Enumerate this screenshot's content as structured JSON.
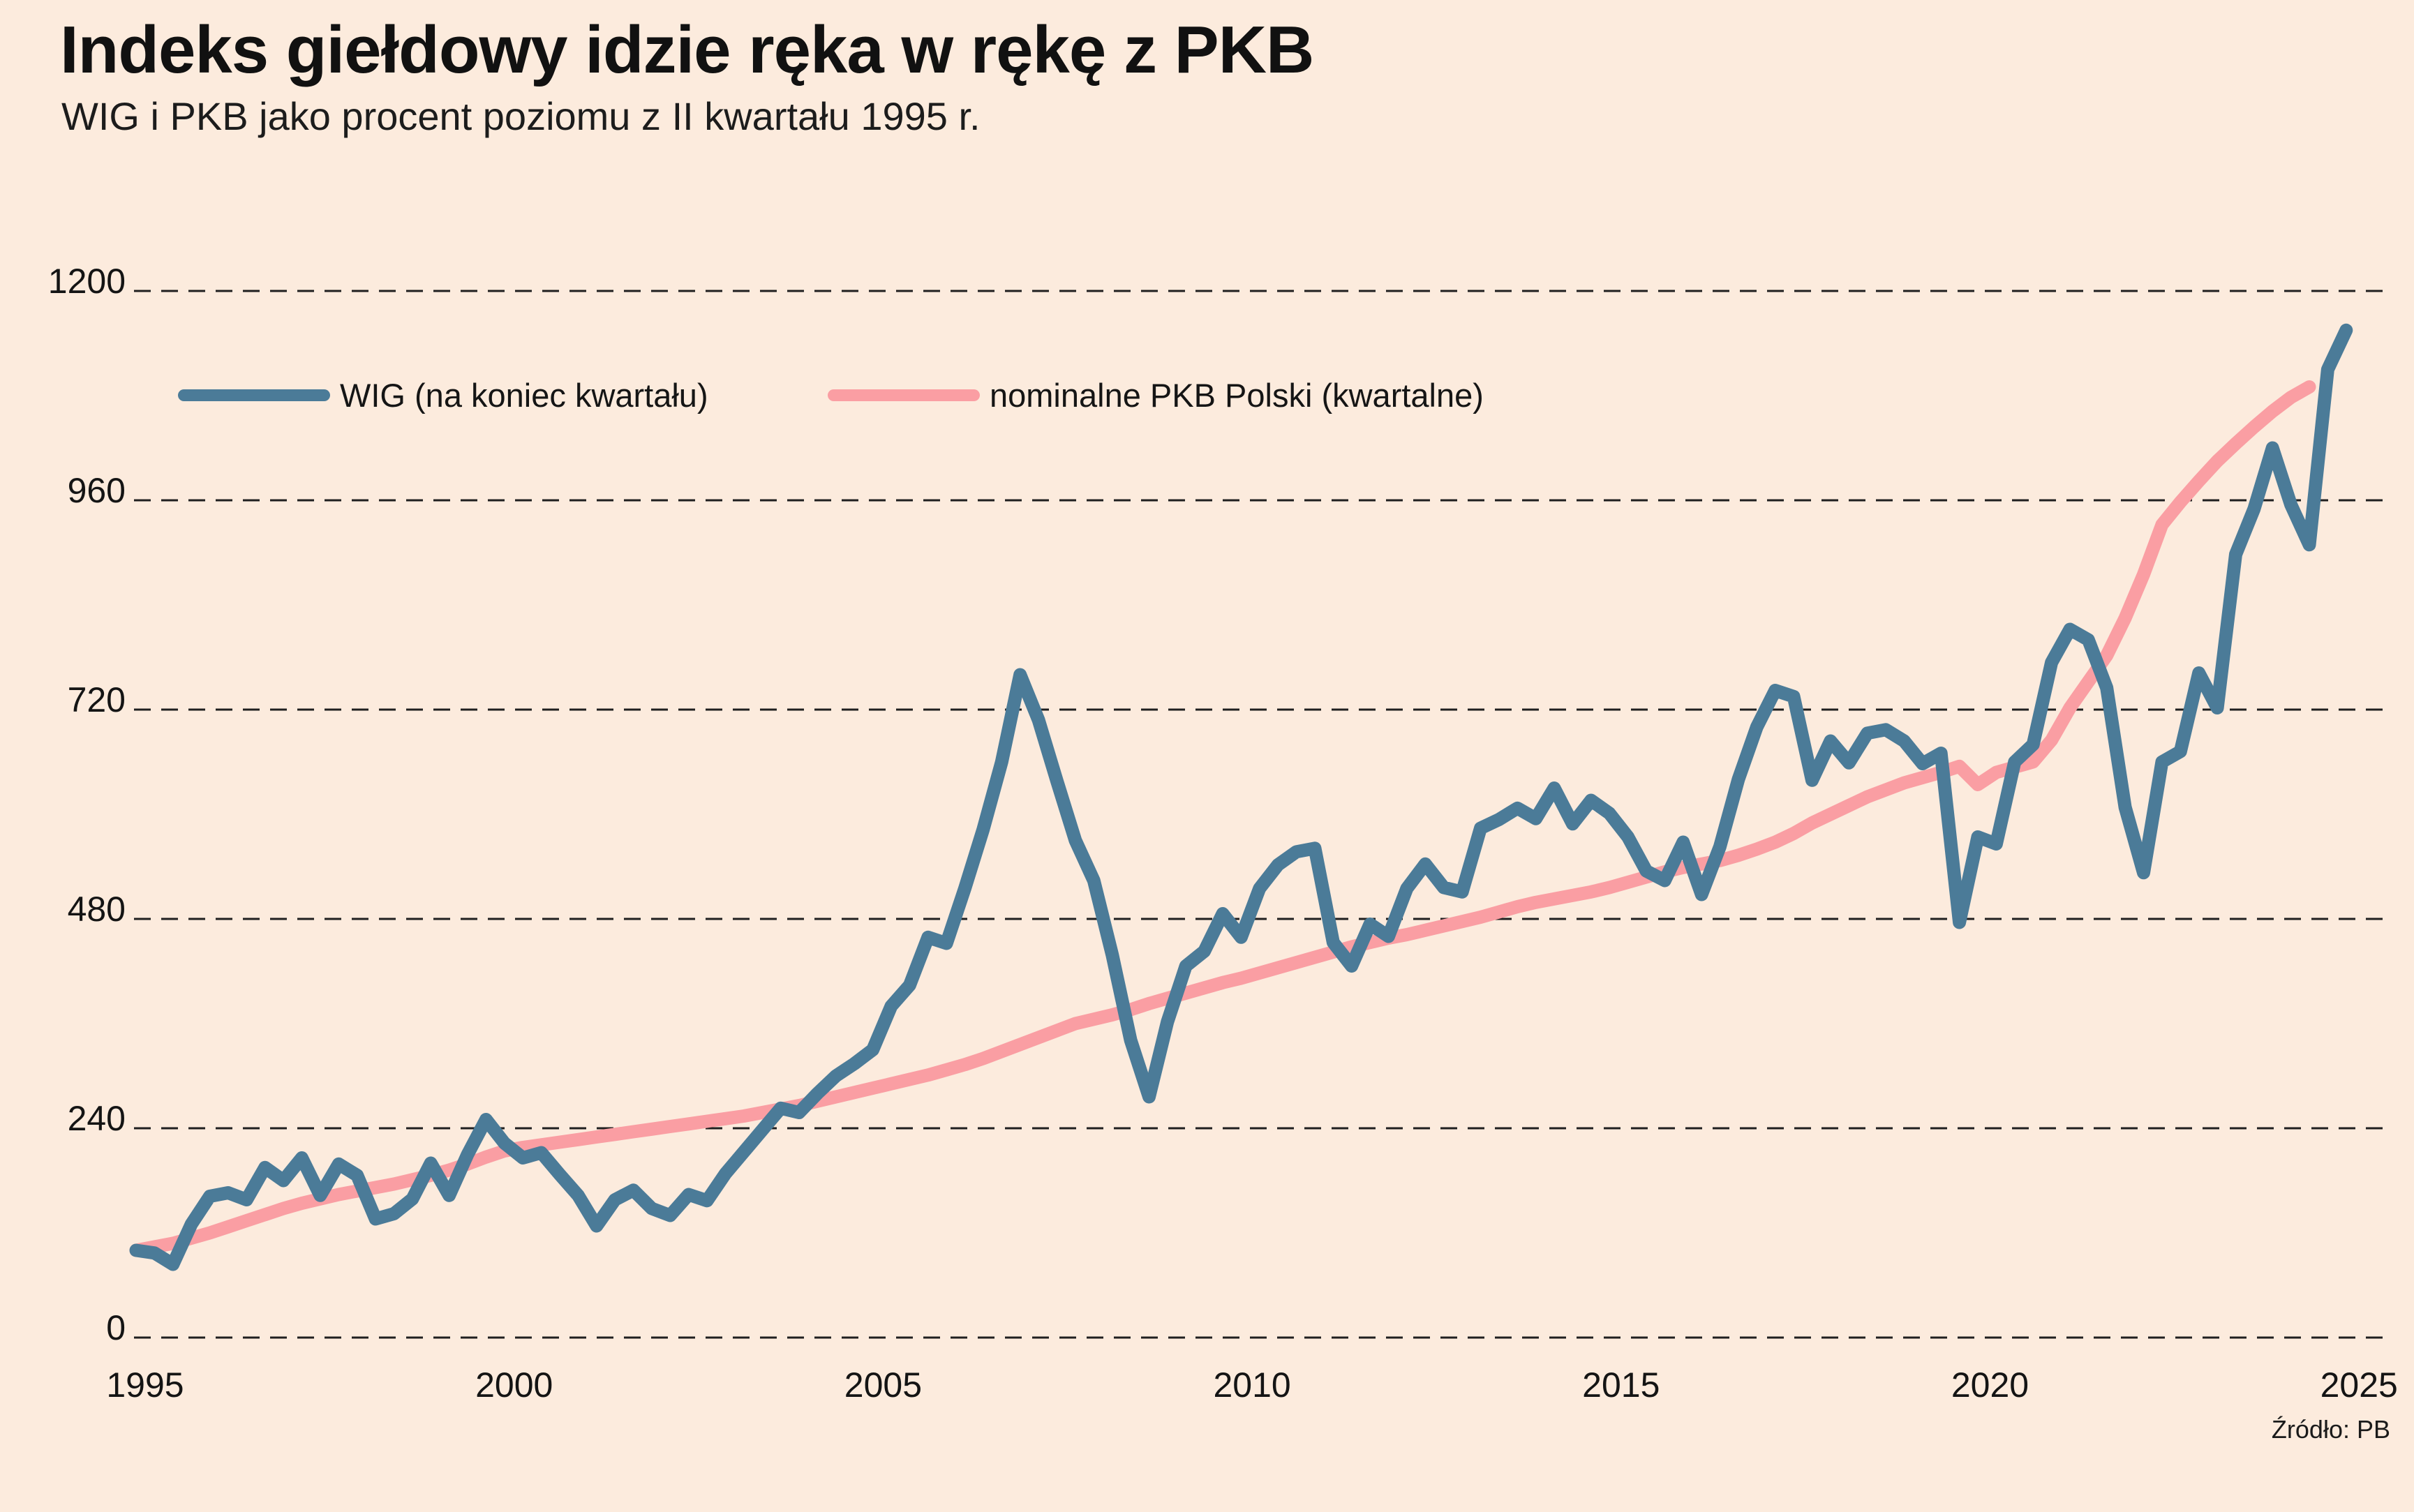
{
  "title": "Indeks giełdowy idzie ręka w rękę z PKB",
  "subtitle": "WIG i PKB jako procent poziomu z II kwartału 1995 r.",
  "source": "Źródło: PB",
  "colors": {
    "background": "#fcebdd",
    "wig_line": "#4b7b98",
    "pkb_line": "#fa9ea3",
    "grid": "#1f1f1f"
  },
  "chart_data": {
    "type": "line",
    "title": "Indeks giełdowy idzie ręka w rękę z PKB",
    "subtitle": "WIG i PKB jako procent poziomu z II kwartału 1995 r.",
    "unit": "procent poziomu z II kwartału 1995 (II kw. 1995 = 100)",
    "grid": "horizontal-dashed",
    "legend_position": "top-left",
    "ylim": [
      0,
      1200
    ],
    "y_axis": {
      "ticks": [
        0,
        240,
        480,
        720,
        960,
        1200
      ],
      "labels": [
        "0",
        "240",
        "480",
        "720",
        "960",
        "1200"
      ]
    },
    "x_axis": {
      "ticks": [
        1995,
        2000,
        2005,
        2010,
        2015,
        2020,
        2025
      ],
      "labels": [
        "1995",
        "2000",
        "2005",
        "2010",
        "2015",
        "2020",
        "2025"
      ]
    },
    "x_start": "1995-Q2",
    "x_frequency": "quarterly",
    "series": [
      {
        "name": "WIG (na koniec kwartału)",
        "color": "#4b7b98",
        "start": "1995-Q2",
        "end": "2025-Q2",
        "values": [
          100,
          97,
          84,
          130,
          162,
          166,
          158,
          195,
          180,
          206,
          163,
          199,
          186,
          136,
          142,
          159,
          200,
          163,
          210,
          250,
          223,
          206,
          212,
          187,
          163,
          128,
          158,
          169,
          148,
          140,
          164,
          157,
          188,
          213,
          238,
          263,
          258,
          280,
          300,
          314,
          330,
          380,
          404,
          459,
          452,
          515,
          583,
          660,
          760,
          708,
          638,
          570,
          524,
          439,
          341,
          276,
          362,
          426,
          443,
          486,
          459,
          515,
          542,
          557,
          561,
          453,
          426,
          474,
          460,
          515,
          543,
          516,
          511,
          584,
          594,
          607,
          595,
          630,
          589,
          616,
          601,
          574,
          535,
          524,
          568,
          508,
          563,
          640,
          700,
          742,
          735,
          639,
          684,
          659,
          693,
          697,
          684,
          658,
          670,
          476,
          574,
          566,
          660,
          680,
          774,
          812,
          800,
          745,
          608,
          533,
          660,
          672,
          762,
          722,
          898,
          950,
          1020,
          955,
          909,
          1110,
          1155
        ]
      },
      {
        "name": "nominalne PKB Polski (kwartalne)",
        "color": "#fa9ea3",
        "start": "1995-Q2",
        "end": "2024-Q4",
        "values": [
          100,
          104,
          108,
          114,
          120,
          127,
          134,
          141,
          148,
          154,
          159,
          164,
          168,
          172,
          176,
          181,
          186,
          192,
          199,
          207,
          214,
          218,
          221,
          224,
          227,
          230,
          233,
          236,
          239,
          242,
          245,
          248,
          251,
          254,
          258,
          262,
          266,
          271,
          276,
          281,
          286,
          291,
          296,
          301,
          307,
          313,
          320,
          328,
          336,
          344,
          352,
          360,
          365,
          370,
          376,
          383,
          389,
          395,
          401,
          407,
          412,
          418,
          424,
          430,
          436,
          442,
          448,
          453,
          458,
          462,
          467,
          472,
          477,
          482,
          488,
          494,
          499,
          503,
          507,
          511,
          516,
          522,
          528,
          534,
          539,
          543,
          547,
          553,
          560,
          568,
          578,
          590,
          600,
          610,
          620,
          628,
          636,
          642,
          648,
          655,
          634,
          648,
          654,
          660,
          685,
          722,
          752,
          782,
          825,
          875,
          932,
          958,
          982,
          1005,
          1025,
          1044,
          1062,
          1078,
          1090
        ]
      }
    ]
  }
}
